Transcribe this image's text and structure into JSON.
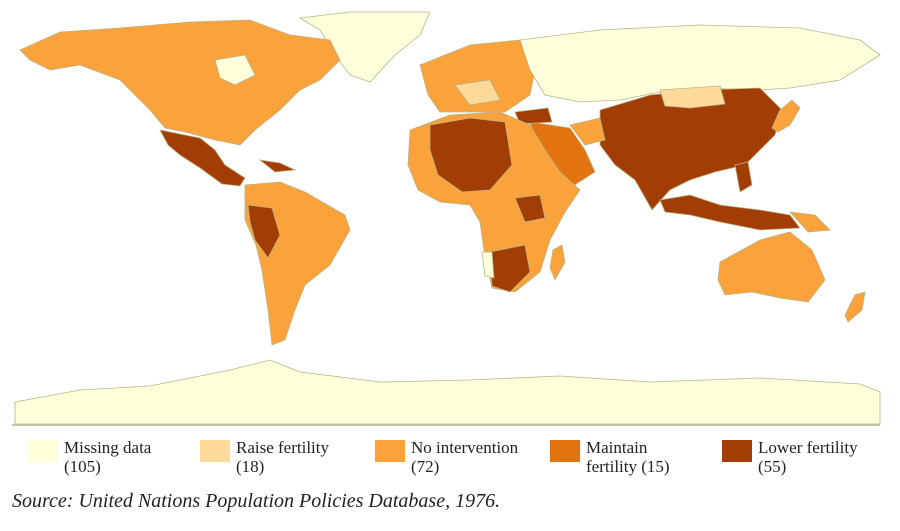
{
  "map": {
    "type": "choropleth world map",
    "colors": {
      "missing": "#ffffdb",
      "raise": "#fdd99a",
      "no_intervention": "#fba23a",
      "maintain": "#e3730f",
      "lower": "#a23e03"
    }
  },
  "legend": [
    {
      "label": "Missing data",
      "count": "(105)",
      "color": "#ffffdb"
    },
    {
      "label": "Raise fertility",
      "count": "(18)",
      "color": "#fdd99a"
    },
    {
      "label": "No intervention",
      "count": "(72)",
      "color": "#fba23a"
    },
    {
      "label": "Maintain",
      "count": "fertility (15)",
      "color": "#e3730f"
    },
    {
      "label": "Lower fertility",
      "count": "(55)",
      "color": "#a23e03"
    }
  ],
  "source": "Source: United Nations Population Policies Database, 1976."
}
